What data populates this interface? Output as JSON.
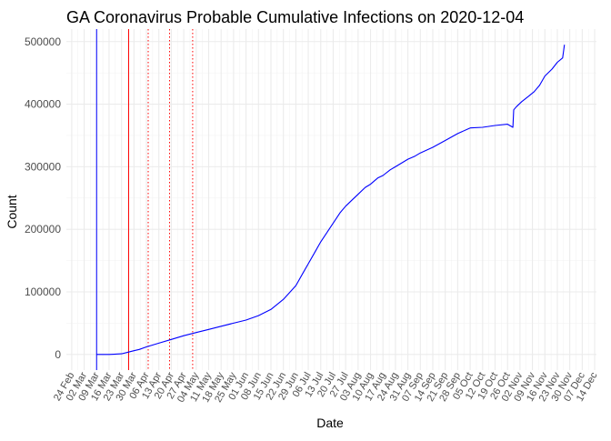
{
  "chart_data": {
    "type": "line",
    "title": "GA Coronavirus Probable Cumulative Infections on 2020-12-04",
    "xlabel": "Date",
    "ylabel": "Count",
    "ylim": [
      -25000,
      520000
    ],
    "yticks": [
      0,
      100000,
      200000,
      300000,
      400000,
      500000
    ],
    "ytick_labels": [
      "0",
      "100000",
      "200000",
      "300000",
      "400000",
      "500000"
    ],
    "xlim_days": [
      -3,
      295
    ],
    "grid": true,
    "xtick_labels": [
      "24 Feb",
      "02 Mar",
      "09 Mar",
      "16 Mar",
      "23 Mar",
      "30 Mar",
      "06 Apr",
      "13 Apr",
      "20 Apr",
      "27 Apr",
      "04 May",
      "11 May",
      "18 May",
      "25 May",
      "01 Jun",
      "08 Jun",
      "15 Jun",
      "22 Jun",
      "29 Jun",
      "06 Jul",
      "13 Jul",
      "20 Jul",
      "27 Jul",
      "03 Aug",
      "10 Aug",
      "17 Aug",
      "24 Aug",
      "31 Aug",
      "07 Sep",
      "14 Sep",
      "21 Sep",
      "28 Sep",
      "05 Oct",
      "12 Oct",
      "19 Oct",
      "26 Oct",
      "02 Nov",
      "09 Nov",
      "16 Nov",
      "23 Nov",
      "30 Nov",
      "07 Dec",
      "14 Dec"
    ],
    "xtick_days": [
      0,
      7,
      14,
      21,
      28,
      35,
      42,
      49,
      56,
      63,
      70,
      77,
      84,
      91,
      98,
      105,
      112,
      119,
      126,
      133,
      140,
      147,
      154,
      161,
      168,
      175,
      182,
      189,
      196,
      203,
      210,
      217,
      224,
      231,
      238,
      245,
      252,
      259,
      266,
      273,
      280,
      287,
      294
    ],
    "vlines": [
      {
        "day": 14,
        "color": "#0000ff",
        "style": "solid"
      },
      {
        "day": 32,
        "color": "#ff0000",
        "style": "solid"
      },
      {
        "day": 43,
        "color": "#ff0000",
        "style": "dotted"
      },
      {
        "day": 55,
        "color": "#ff0000",
        "style": "dotted"
      },
      {
        "day": 68,
        "color": "#ff0000",
        "style": "dotted"
      }
    ],
    "series": [
      {
        "name": "Probable Cumulative Infections",
        "color": "#0000ff",
        "x_days": [
          14,
          21,
          28,
          31,
          35,
          38,
          42,
          49,
          56,
          63,
          70,
          77,
          84,
          91,
          98,
          105,
          112,
          119,
          126,
          130,
          133,
          137,
          140,
          144,
          147,
          151,
          154,
          158,
          161,
          165,
          168,
          172,
          175,
          179,
          182,
          186,
          189,
          193,
          196,
          203,
          210,
          217,
          224,
          231,
          238,
          245,
          248,
          248.5,
          250,
          253,
          257,
          260,
          263,
          266,
          270,
          273,
          276,
          277
        ],
        "values": [
          0,
          0,
          1000,
          3000,
          6000,
          8000,
          12000,
          18000,
          24000,
          30000,
          35000,
          40000,
          45000,
          50000,
          55000,
          62000,
          72000,
          88000,
          110000,
          130000,
          145000,
          165000,
          180000,
          197000,
          210000,
          227000,
          237000,
          248000,
          256000,
          267000,
          272000,
          282000,
          286000,
          295000,
          300000,
          307000,
          312000,
          317000,
          322000,
          331000,
          342000,
          353000,
          362000,
          363000,
          366000,
          368000,
          363000,
          391000,
          396000,
          404000,
          413000,
          420000,
          430000,
          445000,
          456000,
          467000,
          474000,
          495000
        ]
      }
    ]
  }
}
